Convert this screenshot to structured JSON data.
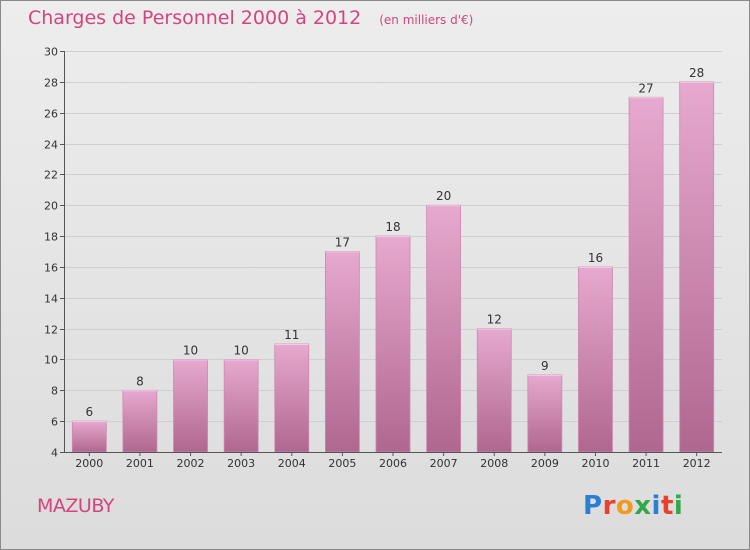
{
  "header": {
    "title": "Charges de Personnel 2000 à 2012",
    "subtitle": "(en milliers d'€)"
  },
  "footer": {
    "commune": "MAZUBY",
    "logo_text": "Proxiti",
    "logo_colors": [
      "#2a7fd4",
      "#e8402a",
      "#f39a1e",
      "#33a84a",
      "#2a7fd4",
      "#e8402a",
      "#33a84a"
    ]
  },
  "colors": {
    "bar_top": "#e7a9cf",
    "bar_bottom": "#b0678f",
    "grid": "#cfcfcf",
    "axis": "#555555",
    "title": "#d4447f"
  },
  "chart_data": {
    "type": "bar",
    "categories": [
      "2000",
      "2001",
      "2002",
      "2003",
      "2004",
      "2005",
      "2006",
      "2007",
      "2008",
      "2009",
      "2010",
      "2011",
      "2012"
    ],
    "values": [
      6,
      8,
      10,
      10,
      11,
      17,
      18,
      20,
      12,
      9,
      16,
      27,
      28
    ],
    "title": "Charges de Personnel 2000 à 2012",
    "xlabel": "",
    "ylabel": "",
    "ylim": [
      4,
      30
    ],
    "yticks": [
      4,
      6,
      8,
      10,
      12,
      14,
      16,
      18,
      20,
      22,
      24,
      26,
      28,
      30
    ],
    "grid": true
  }
}
